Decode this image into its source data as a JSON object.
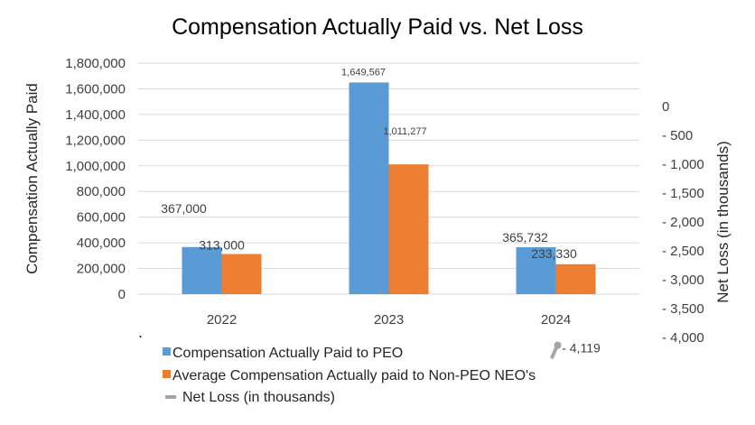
{
  "chart_data": {
    "type": "bar",
    "title": "Compensation Actually Paid vs. Net Loss",
    "categories": [
      "2022",
      "2023",
      "2024"
    ],
    "series": [
      {
        "name": "Compensation Actually Paid to PEO",
        "values": [
          367000,
          1649567,
          365732
        ],
        "labels": [
          "367,000",
          "1,649,567",
          "365,732"
        ],
        "color": "#5B9BD5",
        "axis": "left"
      },
      {
        "name": "Average Compensation Actually paid to Non-PEO NEO's",
        "values": [
          313000,
          1011277,
          233330
        ],
        "labels": [
          "313,000",
          "1,011,277",
          "233,330"
        ],
        "color": "#ED7D31",
        "axis": "left"
      },
      {
        "name": "Net Loss (in thousands)",
        "type": "line",
        "values": [
          null,
          null,
          -4119
        ],
        "labels": [
          "",
          "",
          "- 4,119"
        ],
        "color": "#A5A5A5",
        "axis": "right"
      }
    ],
    "y_left": {
      "label": "Compensation Actually Paid",
      "ylim": [
        0,
        1800000
      ],
      "ticks": [
        0,
        200000,
        400000,
        600000,
        800000,
        1000000,
        1200000,
        1400000,
        1600000,
        1800000
      ],
      "tick_labels": [
        "0",
        "200,000",
        "400,000",
        "600,000",
        "800,000",
        "1,000,000",
        "1,200,000",
        "1,400,000",
        "1,600,000",
        "1,800,000"
      ]
    },
    "y_right": {
      "label": "Net Loss (in thousands)",
      "ylim": [
        -4000,
        0
      ],
      "ticks": [
        0,
        -500,
        -1000,
        -1500,
        -2000,
        -2500,
        -3000,
        -3500,
        -4000
      ],
      "tick_labels": [
        "0",
        "- 500",
        "- 1,000",
        "- 1,500",
        "- 2,000",
        "- 2,500",
        "- 3,000",
        "- 3,500",
        "- 4,000"
      ]
    },
    "grid": true,
    "legend_position": "bottom-left",
    "annotation": "."
  }
}
